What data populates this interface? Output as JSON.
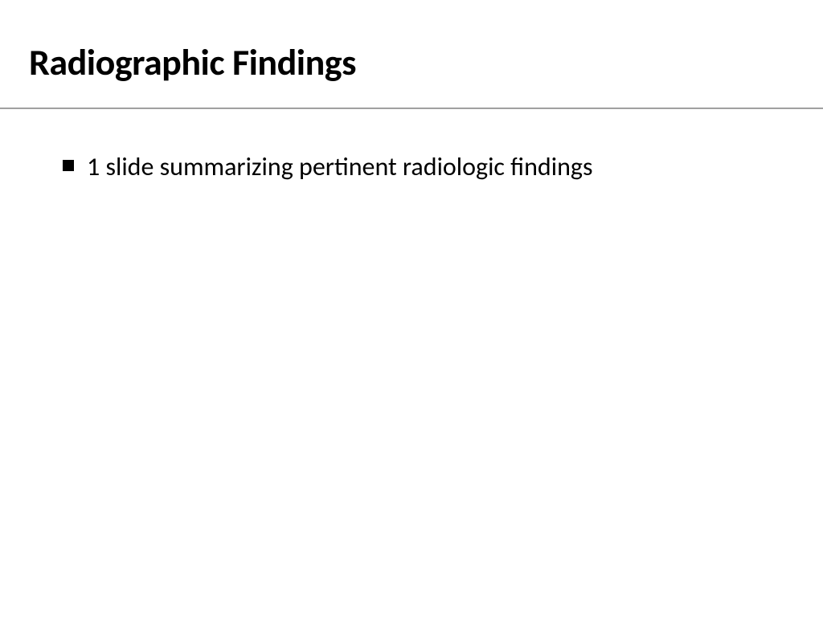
{
  "slide": {
    "title": "Radiographic Findings",
    "title_fontsize": 46,
    "title_fontweight": 700,
    "title_color": "#000000",
    "divider_color_top": "#808080",
    "divider_color_bottom": "#c0c0c0",
    "background_color": "#ffffff",
    "bullets": [
      {
        "text": "1 slide summarizing pertinent radiologic findings",
        "marker_color": "#000000",
        "marker_size": 14,
        "text_color": "#000000",
        "text_fontsize": 32
      }
    ]
  }
}
